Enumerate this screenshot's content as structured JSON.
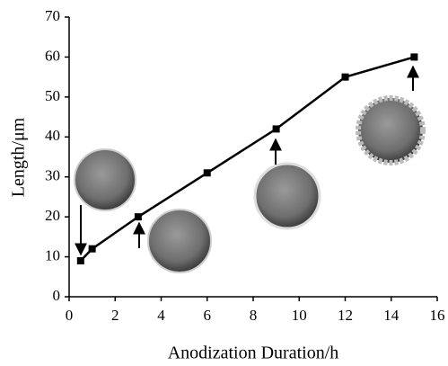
{
  "chart_data": {
    "type": "line",
    "x_label": "Anodization Duration/h",
    "y_label": "Length/μm",
    "x": [
      0.5,
      1,
      3,
      6,
      9,
      12,
      15
    ],
    "series": [
      {
        "color": "#000000",
        "values": [
          9,
          12,
          20,
          31,
          42,
          55,
          60
        ]
      }
    ],
    "xlim": [
      0,
      16
    ],
    "xticks": [
      0,
      2,
      4,
      6,
      8,
      10,
      12,
      14,
      16
    ],
    "ylim": [
      0,
      70
    ],
    "yticks": [
      0,
      10,
      20,
      30,
      40,
      50,
      60,
      70
    ],
    "grid": false
  }
}
